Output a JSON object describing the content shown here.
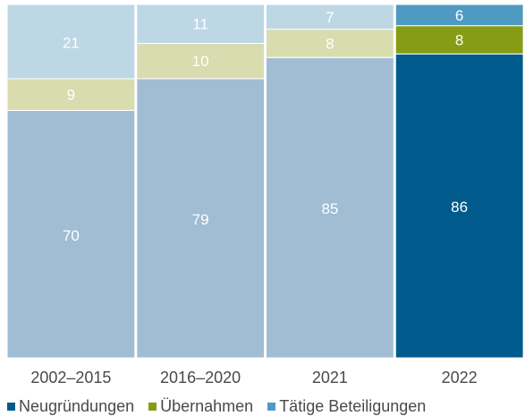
{
  "chart_data": {
    "type": "bar",
    "stacked": true,
    "normalized_percent": true,
    "categories": [
      "2002–2015",
      "2016–2020",
      "2021",
      "2022"
    ],
    "series": [
      {
        "name": "Neugründungen",
        "values": [
          70,
          79,
          85,
          86
        ],
        "colors": [
          "#a0bdd4",
          "#a0bdd4",
          "#a0bdd4",
          "#005a8c"
        ],
        "label_color": "#ffffff"
      },
      {
        "name": "Übernahmen",
        "values": [
          9,
          10,
          8,
          8
        ],
        "colors": [
          "#d8dcae",
          "#d8dcae",
          "#d8dcae",
          "#869c15"
        ],
        "label_color": "#ffffff"
      },
      {
        "name": "Tätige Beteiligungen",
        "values": [
          21,
          11,
          7,
          6
        ],
        "colors": [
          "#bdd7e5",
          "#bdd7e5",
          "#bdd7e5",
          "#4f9ac2"
        ],
        "label_color": "#ffffff"
      }
    ],
    "ylim": [
      0,
      100
    ],
    "grid": false,
    "legend_position": "bottom-left",
    "legend_colors": [
      "#005a8c",
      "#869c15",
      "#4f9ac2"
    ]
  }
}
